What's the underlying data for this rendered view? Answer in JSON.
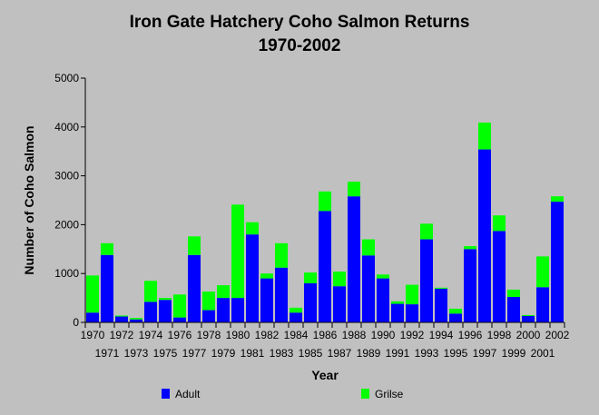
{
  "chart_data": {
    "type": "bar",
    "stacked": true,
    "title": "Iron Gate Hatchery Coho Salmon Returns",
    "subtitle": "1970-2002",
    "xlabel": "Year",
    "ylabel": "Number of Coho Salmon",
    "ylim": [
      0,
      5000
    ],
    "yticks": [
      0,
      1000,
      2000,
      3000,
      4000,
      5000
    ],
    "grid": false,
    "legend_position": "bottom",
    "categories": [
      "1970",
      "1971",
      "1972",
      "1973",
      "1974",
      "1975",
      "1976",
      "1977",
      "1978",
      "1979",
      "1980",
      "1981",
      "1982",
      "1983",
      "1984",
      "1985",
      "1986",
      "1987",
      "1988",
      "1989",
      "1990",
      "1991",
      "1992",
      "1993",
      "1994",
      "1995",
      "1996",
      "1997",
      "1998",
      "1999",
      "2000",
      "2001",
      "2002"
    ],
    "series": [
      {
        "name": "Adult",
        "color": "#0000ff",
        "values": [
          200,
          1380,
          120,
          60,
          420,
          460,
          100,
          1380,
          250,
          500,
          500,
          1800,
          900,
          1120,
          200,
          800,
          2280,
          740,
          2580,
          1370,
          900,
          380,
          370,
          1700,
          690,
          180,
          1500,
          3540,
          1870,
          520,
          130,
          720,
          2470
        ]
      },
      {
        "name": "Grilse",
        "color": "#00ff00",
        "values": [
          760,
          240,
          20,
          30,
          430,
          40,
          470,
          380,
          380,
          260,
          1910,
          250,
          100,
          500,
          100,
          220,
          400,
          300,
          300,
          330,
          80,
          50,
          400,
          320,
          20,
          100,
          60,
          550,
          320,
          150,
          20,
          630,
          110
        ]
      }
    ]
  }
}
